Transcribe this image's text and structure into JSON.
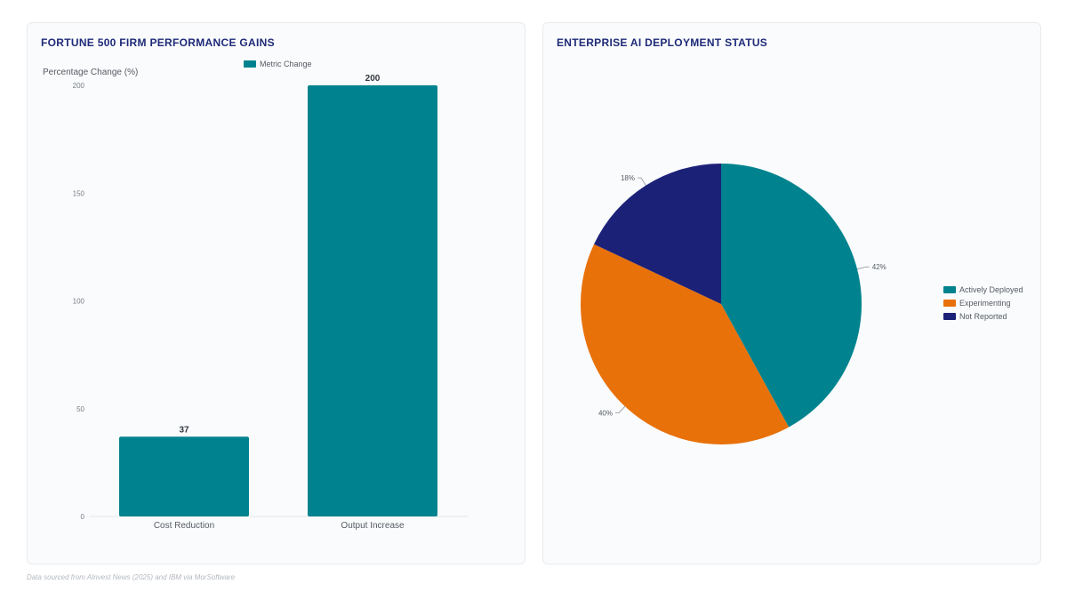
{
  "footnote": "Data sourced from AInvest News (2025) and IBM via MorSoftware",
  "colors": {
    "teal": "#00838f",
    "orange": "#e8710a",
    "navy": "#1c2178",
    "title": "#1e2a78"
  },
  "chart_data": [
    {
      "type": "bar",
      "title": "FORTUNE 500 FIRM PERFORMANCE GAINS",
      "ylabel": "Percentage Change (%)",
      "xlabel": "",
      "categories": [
        "Cost Reduction",
        "Output Increase"
      ],
      "series": [
        {
          "name": "Metric Change",
          "values": [
            37,
            200
          ],
          "color": "#00838f"
        }
      ],
      "ylim": [
        0,
        200
      ],
      "yticks": [
        0,
        50,
        100,
        150,
        200
      ],
      "data_labels": true,
      "grid": false,
      "legend_position": "top"
    },
    {
      "type": "pie",
      "title": "ENTERPRISE AI DEPLOYMENT STATUS",
      "labels": [
        "Actively Deployed",
        "Experimenting",
        "Not Reported"
      ],
      "values": [
        42,
        40,
        18
      ],
      "percent_labels": [
        "42%",
        "40%",
        "18%"
      ],
      "colors": [
        "#00838f",
        "#e8710a",
        "#1c2178"
      ],
      "legend_position": "right"
    }
  ]
}
